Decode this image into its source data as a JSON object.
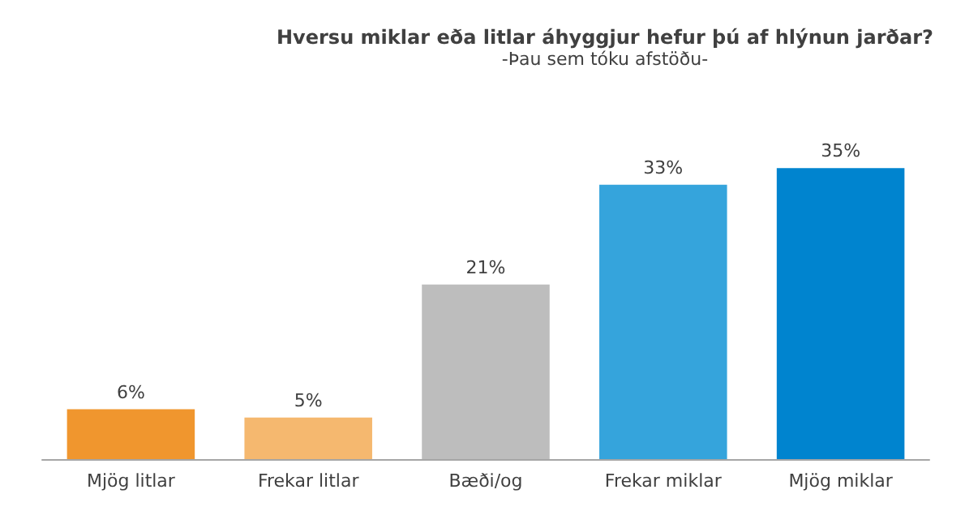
{
  "chart_data": {
    "type": "bar",
    "title": "Hversu miklar eða litlar áhyggjur hefur þú af hlýnun jarðar?",
    "subtitle": "-Þau sem tóku afstöðu-",
    "categories": [
      "Mjög litlar",
      "Frekar litlar",
      "Bæði/og",
      "Frekar miklar",
      "Mjög miklar"
    ],
    "values": [
      6,
      5,
      21,
      33,
      35
    ],
    "value_labels": [
      "6%",
      "5%",
      "21%",
      "33%",
      "35%"
    ],
    "colors": [
      "#f0962e",
      "#f5b86f",
      "#bdbdbd",
      "#35a4dc",
      "#0084cf"
    ]
  }
}
